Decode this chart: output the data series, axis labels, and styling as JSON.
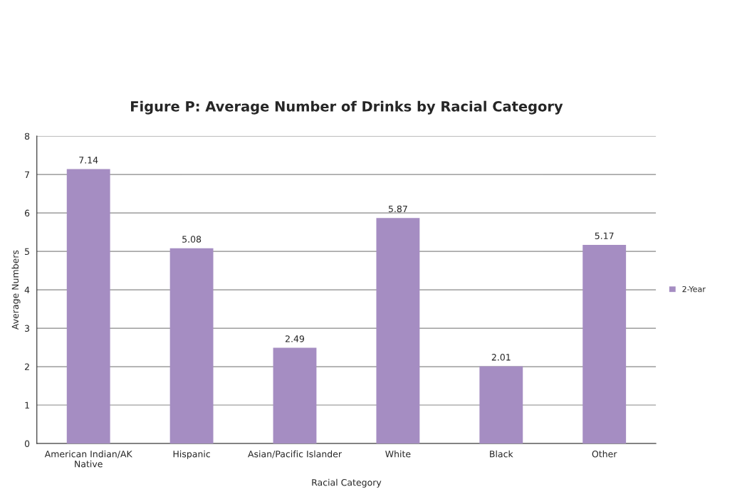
{
  "chart_data": {
    "type": "bar",
    "title": "Figure P: Average Number of Drinks by Racial Category",
    "xlabel": "Racial Category",
    "ylabel": "Average Numbers",
    "categories": [
      "American Indian/AK\nNative",
      "Hispanic",
      "Asian/Pacific Islander",
      "White",
      "Black",
      "Other"
    ],
    "series": [
      {
        "name": "2-Year",
        "color": "#a58dc2",
        "values": [
          7.14,
          5.08,
          2.49,
          5.87,
          2.01,
          5.17
        ]
      }
    ],
    "ylim": [
      0,
      8
    ],
    "yticks": [
      0,
      1,
      2,
      3,
      4,
      5,
      6,
      7,
      8
    ],
    "grid": "y",
    "legend": "right",
    "data_labels": true
  }
}
